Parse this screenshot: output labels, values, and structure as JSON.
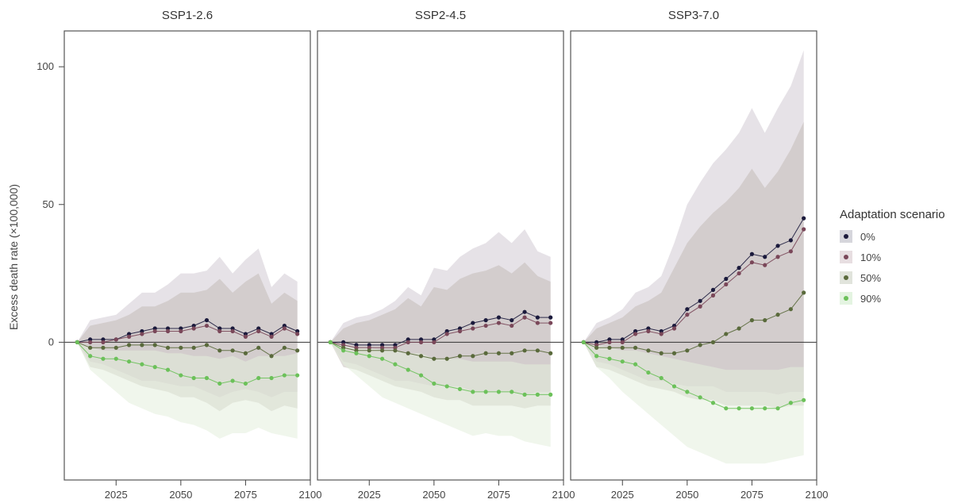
{
  "chart_data": {
    "type": "line",
    "ylabel": "Excess death rate (×100,000)",
    "xlabel": "",
    "xlim": [
      2005,
      2100
    ],
    "ylim": [
      -50,
      113
    ],
    "x_ticks": [
      2025,
      2050,
      2075,
      2100
    ],
    "y_ticks": [
      0,
      50,
      100
    ],
    "x": [
      2010,
      2015,
      2020,
      2025,
      2030,
      2035,
      2040,
      2045,
      2050,
      2055,
      2060,
      2065,
      2070,
      2075,
      2080,
      2085,
      2090,
      2095
    ],
    "legend": {
      "title": "Adaptation scenario",
      "position": "right",
      "items": [
        {
          "label": "0%",
          "color": "#1b1a3c"
        },
        {
          "label": "10%",
          "color": "#7a4759"
        },
        {
          "label": "50%",
          "color": "#5a6a3c"
        },
        {
          "label": "90%",
          "color": "#6cc15a"
        }
      ]
    },
    "panels": [
      {
        "title": "SSP1-2.6",
        "series": [
          {
            "name": "0%",
            "color": "#1b1a3c",
            "values": [
              0,
              1,
              1,
              1,
              3,
              4,
              5,
              5,
              5,
              6,
              8,
              5,
              5,
              3,
              5,
              3,
              6,
              4
            ],
            "upper": [
              0,
              8,
              9,
              10,
              14,
              18,
              18,
              21,
              25,
              25,
              26,
              31,
              25,
              30,
              34,
              20,
              25,
              22
            ],
            "lower": [
              0,
              -7,
              -8,
              -10,
              -12,
              -14,
              -14,
              -15,
              -16,
              -16,
              -18,
              -20,
              -18,
              -17,
              -18,
              -20,
              -18,
              -18
            ]
          },
          {
            "name": "10%",
            "color": "#7a4759",
            "values": [
              0,
              0,
              0,
              1,
              2,
              3,
              4,
              4,
              4,
              5,
              6,
              4,
              4,
              2,
              4,
              2,
              5,
              3
            ]
          },
          {
            "name": "50%",
            "color": "#5a6a3c",
            "values": [
              0,
              -2,
              -2,
              -2,
              -1,
              -1,
              -1,
              -2,
              -2,
              -2,
              -1,
              -3,
              -3,
              -4,
              -2,
              -5,
              -2,
              -3
            ],
            "upper": [
              0,
              6,
              7,
              8,
              10,
              13,
              13,
              15,
              18,
              18,
              19,
              23,
              18,
              22,
              25,
              14,
              18,
              15
            ],
            "lower": [
              0,
              -9,
              -10,
              -12,
              -14,
              -16,
              -17,
              -18,
              -20,
              -20,
              -22,
              -25,
              -22,
              -21,
              -22,
              -25,
              -23,
              -24
            ]
          },
          {
            "name": "90%",
            "color": "#6cc15a",
            "values": [
              0,
              -5,
              -6,
              -6,
              -7,
              -8,
              -9,
              -10,
              -12,
              -13,
              -13,
              -15,
              -14,
              -15,
              -13,
              -13,
              -12,
              -12
            ],
            "upper": [
              0,
              -2,
              -3,
              -3,
              -3,
              -3,
              -3,
              -4,
              -4,
              -5,
              -5,
              -6,
              -5,
              -7,
              -5,
              -5,
              -5,
              -4
            ],
            "lower": [
              0,
              -10,
              -14,
              -18,
              -22,
              -24,
              -26,
              -27,
              -29,
              -30,
              -32,
              -35,
              -33,
              -33,
              -31,
              -33,
              -34,
              -35
            ]
          }
        ]
      },
      {
        "title": "SSP2-4.5",
        "series": [
          {
            "name": "0%",
            "color": "#1b1a3c",
            "values": [
              0,
              0,
              -1,
              -1,
              -1,
              -1,
              1,
              1,
              1,
              4,
              5,
              7,
              8,
              9,
              8,
              11,
              9,
              9
            ],
            "upper": [
              0,
              7,
              9,
              10,
              12,
              15,
              20,
              17,
              27,
              26,
              31,
              34,
              36,
              40,
              36,
              41,
              33,
              31
            ],
            "lower": [
              0,
              -7,
              -8,
              -10,
              -12,
              -14,
              -14,
              -15,
              -16,
              -16,
              -16,
              -18,
              -18,
              -18,
              -18,
              -19,
              -18,
              -18
            ]
          },
          {
            "name": "10%",
            "color": "#7a4759",
            "values": [
              0,
              -1,
              -2,
              -2,
              -2,
              -2,
              0,
              0,
              0,
              3,
              4,
              5,
              6,
              7,
              6,
              9,
              7,
              7
            ]
          },
          {
            "name": "50%",
            "color": "#5a6a3c",
            "values": [
              0,
              -2,
              -3,
              -3,
              -3,
              -3,
              -4,
              -5,
              -6,
              -6,
              -5,
              -5,
              -4,
              -4,
              -4,
              -3,
              -3,
              -4
            ],
            "upper": [
              0,
              5,
              7,
              8,
              10,
              12,
              16,
              13,
              20,
              19,
              23,
              25,
              26,
              28,
              25,
              29,
              24,
              22
            ],
            "lower": [
              0,
              -9,
              -10,
              -12,
              -14,
              -16,
              -17,
              -18,
              -20,
              -21,
              -21,
              -23,
              -23,
              -23,
              -23,
              -24,
              -23,
              -23
            ]
          },
          {
            "name": "90%",
            "color": "#6cc15a",
            "values": [
              0,
              -3,
              -4,
              -5,
              -6,
              -8,
              -10,
              -12,
              -15,
              -16,
              -17,
              -18,
              -18,
              -18,
              -18,
              -19,
              -19,
              -19
            ],
            "upper": [
              0,
              -1,
              -2,
              -2,
              -3,
              -3,
              -4,
              -4,
              -6,
              -6,
              -6,
              -7,
              -7,
              -7,
              -7,
              -8,
              -8,
              -8
            ],
            "lower": [
              0,
              -8,
              -12,
              -16,
              -20,
              -22,
              -24,
              -26,
              -28,
              -30,
              -32,
              -34,
              -33,
              -34,
              -34,
              -36,
              -37,
              -38
            ]
          }
        ]
      },
      {
        "title": "SSP3-7.0",
        "series": [
          {
            "name": "0%",
            "color": "#1b1a3c",
            "values": [
              0,
              0,
              1,
              1,
              4,
              5,
              4,
              6,
              12,
              15,
              19,
              23,
              27,
              32,
              31,
              35,
              37,
              45
            ],
            "upper": [
              0,
              7,
              9,
              12,
              18,
              20,
              24,
              36,
              50,
              58,
              65,
              70,
              76,
              85,
              76,
              85,
              93,
              106
            ],
            "lower": [
              0,
              -7,
              -8,
              -10,
              -12,
              -14,
              -14,
              -15,
              -16,
              -16,
              -16,
              -18,
              -18,
              -18,
              -18,
              -19,
              -18,
              -18
            ]
          },
          {
            "name": "10%",
            "color": "#7a4759",
            "values": [
              0,
              -1,
              0,
              0,
              3,
              4,
              3,
              5,
              10,
              13,
              17,
              21,
              25,
              29,
              28,
              31,
              33,
              41
            ]
          },
          {
            "name": "50%",
            "color": "#5a6a3c",
            "values": [
              0,
              -2,
              -2,
              -2,
              -2,
              -3,
              -4,
              -4,
              -3,
              -1,
              0,
              3,
              5,
              8,
              8,
              10,
              12,
              18
            ],
            "upper": [
              0,
              5,
              7,
              9,
              13,
              15,
              18,
              27,
              36,
              42,
              47,
              51,
              56,
              63,
              56,
              62,
              70,
              80
            ],
            "lower": [
              0,
              -9,
              -10,
              -12,
              -14,
              -16,
              -17,
              -18,
              -20,
              -21,
              -21,
              -23,
              -23,
              -23,
              -23,
              -24,
              -23,
              -23
            ]
          },
          {
            "name": "90%",
            "color": "#6cc15a",
            "values": [
              0,
              -5,
              -6,
              -7,
              -8,
              -11,
              -13,
              -16,
              -18,
              -20,
              -22,
              -24,
              -24,
              -24,
              -24,
              -24,
              -22,
              -21
            ],
            "upper": [
              0,
              -1,
              -2,
              -3,
              -3,
              -4,
              -5,
              -6,
              -7,
              -8,
              -9,
              -10,
              -10,
              -10,
              -10,
              -10,
              -9,
              -9
            ],
            "lower": [
              0,
              -9,
              -13,
              -18,
              -22,
              -26,
              -30,
              -34,
              -38,
              -40,
              -42,
              -44,
              -44,
              -44,
              -44,
              -43,
              -42,
              -41
            ]
          }
        ]
      }
    ]
  }
}
